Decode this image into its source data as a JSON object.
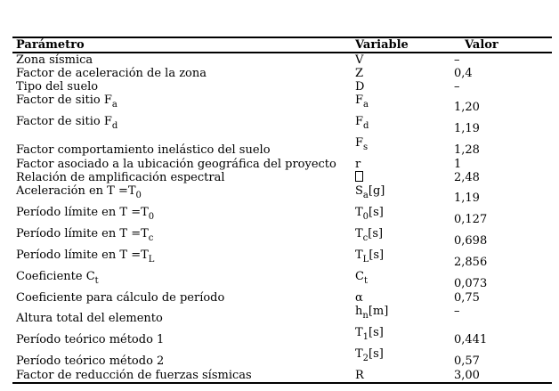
{
  "page": {
    "background": "#ffffff",
    "text_color": "#000000",
    "rule_color": "#000000"
  },
  "table": {
    "headers": [
      "Parámetro",
      "Variable",
      "Valor"
    ],
    "missing_value_glyph": "–",
    "missing_variable_glyph": "□",
    "rows": [
      {
        "param": [
          {
            "t": "Zona sísmica"
          }
        ],
        "variable": [
          {
            "t": "V"
          }
        ],
        "value": "–",
        "tall": false
      },
      {
        "param": [
          {
            "t": "Factor de aceleración de la zona"
          }
        ],
        "variable": [
          {
            "t": "Z"
          }
        ],
        "value": "0,4",
        "tall": false
      },
      {
        "param": [
          {
            "t": "Tipo del suelo"
          }
        ],
        "variable": [
          {
            "t": "D"
          }
        ],
        "value": "–",
        "tall": false
      },
      {
        "param": [
          {
            "t": "Factor de sitio F"
          },
          {
            "t": "a",
            "sub": true
          }
        ],
        "variable": [
          {
            "t": "F"
          },
          {
            "t": "a",
            "sub": true
          }
        ],
        "value": "1,20",
        "tall": true,
        "paramAlign": "top",
        "valueAlign": "bottom"
      },
      {
        "param": [
          {
            "t": "Factor de sitio F"
          },
          {
            "t": "d",
            "sub": true
          }
        ],
        "variable": [
          {
            "t": "F"
          },
          {
            "t": "d",
            "sub": true
          }
        ],
        "value": "1,19",
        "tall": true,
        "paramAlign": "top",
        "valueAlign": "bottom"
      },
      {
        "param": [
          {
            "t": "Factor comportamiento inelástico del suelo"
          }
        ],
        "variable": [
          {
            "t": "F"
          },
          {
            "t": "s",
            "sub": true
          }
        ],
        "value": "1,28",
        "tall": true,
        "paramAlign": "bottom",
        "valueAlign": "bottom"
      },
      {
        "param": [
          {
            "t": "Factor asociado a la ubicación geográfica del proyecto"
          }
        ],
        "variable": [
          {
            "t": "r"
          }
        ],
        "value": "1",
        "tall": false
      },
      {
        "param": [
          {
            "t": "Relación de amplificación espectral"
          }
        ],
        "variable": [
          {
            "t": "□",
            "box": true
          }
        ],
        "value": "2,48",
        "tall": false
      },
      {
        "param": [
          {
            "t": "Aceleración en T =T"
          },
          {
            "t": "0",
            "sub": true
          }
        ],
        "variable": [
          {
            "t": "S"
          },
          {
            "t": "a",
            "sub": true
          },
          {
            "t": "[g]"
          }
        ],
        "value": "1,19",
        "tall": true,
        "paramAlign": "top",
        "valueAlign": "bottom"
      },
      {
        "param": [
          {
            "t": "Período límite en T =T"
          },
          {
            "t": "0",
            "sub": true
          }
        ],
        "variable": [
          {
            "t": "T"
          },
          {
            "t": "0",
            "sub": true
          },
          {
            "t": "[s]"
          }
        ],
        "value": "0,127",
        "tall": true,
        "paramAlign": "top",
        "valueAlign": "bottom"
      },
      {
        "param": [
          {
            "t": "Período límite en T =T"
          },
          {
            "t": "c",
            "sub": true
          }
        ],
        "variable": [
          {
            "t": "T"
          },
          {
            "t": "c",
            "sub": true
          },
          {
            "t": "[s]"
          }
        ],
        "value": "0,698",
        "tall": true,
        "paramAlign": "top",
        "valueAlign": "bottom"
      },
      {
        "param": [
          {
            "t": "Período límite en T =T"
          },
          {
            "t": "L",
            "sub": true
          }
        ],
        "variable": [
          {
            "t": "T"
          },
          {
            "t": "L",
            "sub": true
          },
          {
            "t": "[s]"
          }
        ],
        "value": "2,856",
        "tall": true,
        "paramAlign": "top",
        "valueAlign": "bottom"
      },
      {
        "param": [
          {
            "t": "Coeficiente C"
          },
          {
            "t": "t",
            "sub": true
          }
        ],
        "variable": [
          {
            "t": "C"
          },
          {
            "t": "t",
            "sub": true
          }
        ],
        "value": "0,073",
        "tall": true,
        "paramAlign": "top",
        "valueAlign": "bottom"
      },
      {
        "param": [
          {
            "t": "Coeficiente para cálculo de período"
          }
        ],
        "variable": [
          {
            "t": "α"
          }
        ],
        "value": "0,75",
        "tall": false
      },
      {
        "param": [
          {
            "t": "Altura total del elemento"
          }
        ],
        "variable": [
          {
            "t": "h"
          },
          {
            "t": "n",
            "sub": true
          },
          {
            "t": "[m]"
          }
        ],
        "value": "–",
        "tall": true,
        "paramAlign": "bottom",
        "valueAlign": "top"
      },
      {
        "param": [
          {
            "t": "Período teórico método 1"
          }
        ],
        "variable": [
          {
            "t": "T"
          },
          {
            "t": "1",
            "sub": true
          },
          {
            "t": "[s]"
          }
        ],
        "value": "0,441",
        "tall": true,
        "paramAlign": "bottom",
        "valueAlign": "bottom"
      },
      {
        "param": [
          {
            "t": "Período teórico método 2"
          }
        ],
        "variable": [
          {
            "t": "T"
          },
          {
            "t": "2",
            "sub": true
          },
          {
            "t": "[s]"
          }
        ],
        "value": "0,57",
        "tall": true,
        "paramAlign": "bottom",
        "valueAlign": "bottom"
      },
      {
        "param": [
          {
            "t": "Factor de reducción de fuerzas sísmicas"
          }
        ],
        "variable": [
          {
            "t": "R"
          }
        ],
        "value": "3,00",
        "tall": false
      }
    ]
  }
}
